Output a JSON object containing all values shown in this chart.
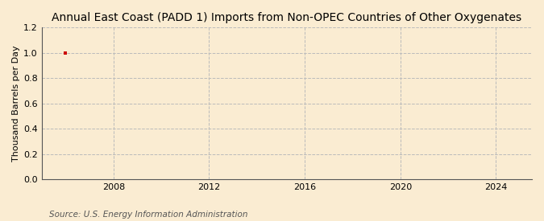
{
  "title": "Annual East Coast (PADD 1) Imports from Non-OPEC Countries of Other Oxygenates",
  "ylabel": "Thousand Barrels per Day",
  "source_text": "Source: U.S. Energy Information Administration",
  "background_color": "#faecd2",
  "plot_bg_color": "#faecd2",
  "data_x": [
    2006
  ],
  "data_y": [
    1.0
  ],
  "data_color": "#cc0000",
  "xmin": 2005,
  "xmax": 2025.5,
  "ymin": 0.0,
  "ymax": 1.2,
  "yticks": [
    0.0,
    0.2,
    0.4,
    0.6,
    0.8,
    1.0,
    1.2
  ],
  "xticks": [
    2008,
    2012,
    2016,
    2020,
    2024
  ],
  "grid_color": "#bbbbbb",
  "title_fontsize": 10,
  "label_fontsize": 8,
  "tick_fontsize": 8,
  "source_fontsize": 7.5
}
